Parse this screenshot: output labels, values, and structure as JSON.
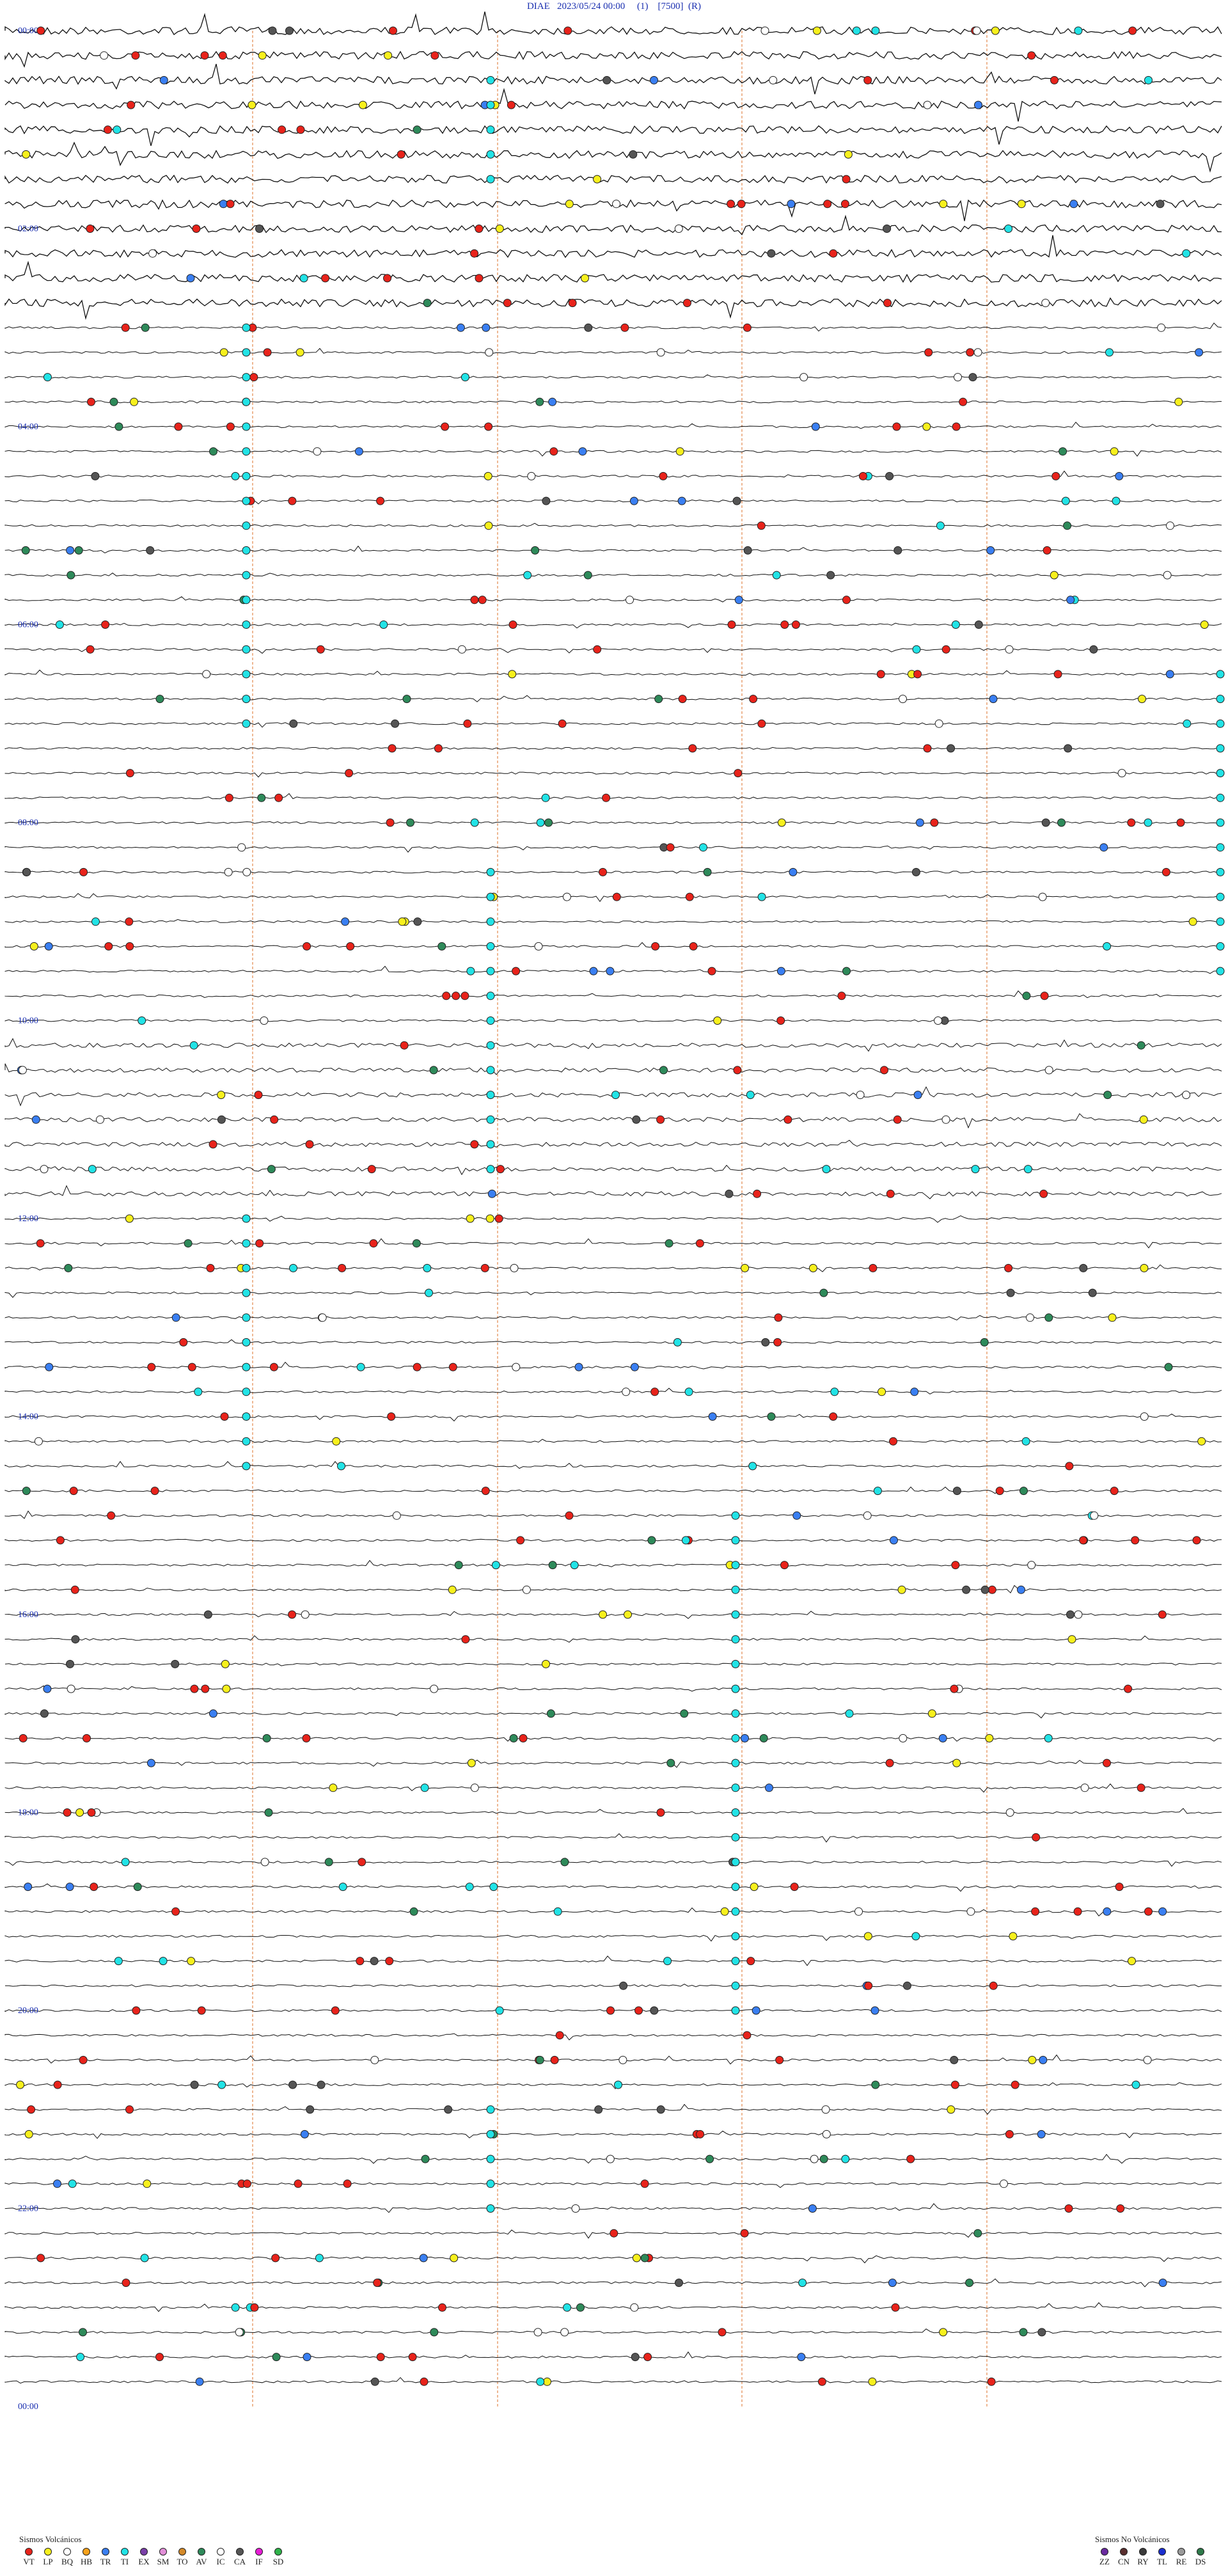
{
  "header": {
    "title": "DIAE   2023/05/24 00:00     (1)    [7500]  (R)"
  },
  "chart_data": {
    "type": "seismic_helicorder",
    "station": "DIAE",
    "start": "2023/05/24 00:00",
    "hour_labels": [
      "00:00",
      "02:00",
      "04:00",
      "06:00",
      "08:00",
      "10:00",
      "12:00",
      "14:00",
      "16:00",
      "18:00",
      "20:00",
      "22:00",
      "00:00"
    ],
    "legend_volcanic": {
      "title": "Sismos Volcánicos",
      "items": [
        {
          "code": "VT",
          "color": "#e8231b"
        },
        {
          "code": "LP",
          "color": "#f7f01d"
        },
        {
          "code": "BQ",
          "color": "#ffffff"
        },
        {
          "code": "HB",
          "color": "#f7a21b"
        },
        {
          "code": "TR",
          "color": "#3a7ff2"
        },
        {
          "code": "TI",
          "color": "#22e3e6"
        },
        {
          "code": "EX",
          "color": "#7a3fa8"
        },
        {
          "code": "SM",
          "color": "#e28fd8"
        },
        {
          "code": "TO",
          "color": "#d48a2a"
        },
        {
          "code": "AV",
          "color": "#2e8a5a"
        },
        {
          "code": "IC",
          "color": "#ffffff"
        },
        {
          "code": "CA",
          "color": "#555555"
        },
        {
          "code": "IF",
          "color": "#e71ed6"
        },
        {
          "code": "SD",
          "color": "#2fb34a"
        }
      ]
    },
    "legend_nonvolcanic": {
      "title": "Sismos No Volcánicos",
      "items": [
        {
          "code": "ZZ",
          "color": "#6a2aa0"
        },
        {
          "code": "CN",
          "color": "#5a2f2f"
        },
        {
          "code": "RY",
          "color": "#3a3a3a"
        },
        {
          "code": "TL",
          "color": "#1b2fd0"
        },
        {
          "code": "RE",
          "color": "#9a9a9a"
        },
        {
          "code": "DS",
          "color": "#2e7a4a"
        }
      ]
    }
  }
}
